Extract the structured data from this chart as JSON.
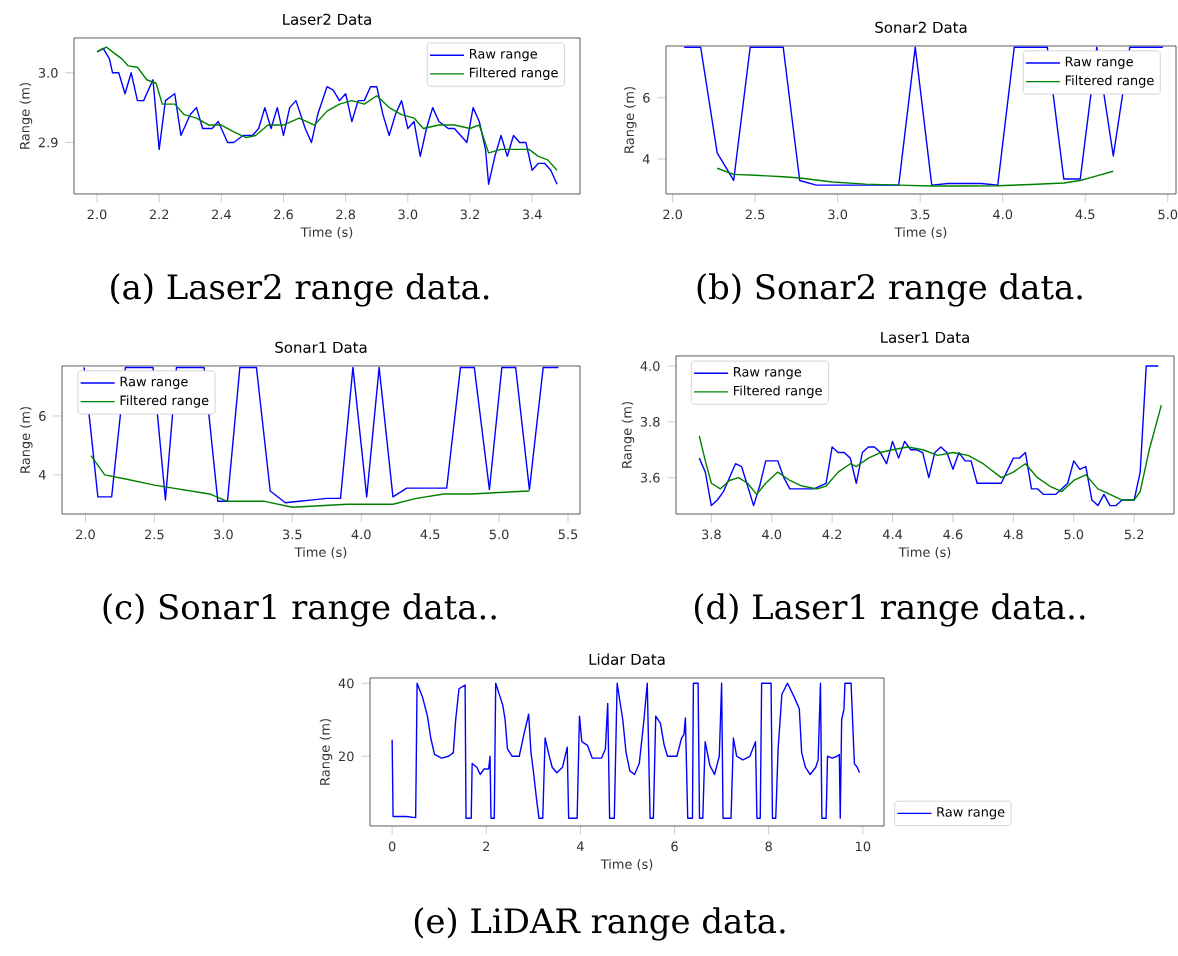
{
  "chart_data": [
    {
      "type": "line",
      "title": "Laser2 Data",
      "xlabel": "Time (s)",
      "ylabel": "Range (m)",
      "xlim": [
        1.926,
        3.554
      ],
      "ylim": [
        2.826,
        3.05
      ],
      "xticks": [
        {
          "value": 2.0,
          "label": "2.0"
        },
        2.2,
        2.4,
        2.6,
        2.8,
        {
          "value": 3.0,
          "label": "3.0"
        },
        3.2,
        3.4
      ],
      "yticks": [
        2.9,
        {
          "value": 3.0,
          "label": "3.0"
        }
      ],
      "legend": "top right",
      "annotations": [
        "(a) Laser2 range data."
      ],
      "series": [
        {
          "name": "Raw range",
          "color": "#0000ff",
          "x": [
            2.0,
            2.02,
            2.04,
            2.05,
            2.07,
            2.09,
            2.11,
            2.13,
            2.15,
            2.18,
            2.2,
            2.22,
            2.25,
            2.27,
            2.3,
            2.32,
            2.34,
            2.37,
            2.39,
            2.42,
            2.44,
            2.47,
            2.5,
            2.52,
            2.54,
            2.56,
            2.58,
            2.6,
            2.62,
            2.64,
            2.67,
            2.69,
            2.71,
            2.74,
            2.76,
            2.78,
            2.8,
            2.82,
            2.84,
            2.86,
            2.88,
            2.9,
            2.92,
            2.94,
            2.96,
            2.98,
            3.0,
            3.02,
            3.04,
            3.06,
            3.08,
            3.1,
            3.13,
            3.15,
            3.17,
            3.19,
            3.21,
            3.23,
            3.25,
            3.26,
            3.28,
            3.3,
            3.32,
            3.34,
            3.36,
            3.38,
            3.4,
            3.42,
            3.44,
            3.46,
            3.48
          ],
          "values": [
            3.03,
            3.035,
            3.02,
            3.0,
            3.0,
            2.97,
            3.0,
            2.96,
            2.96,
            2.99,
            2.89,
            2.96,
            2.97,
            2.91,
            2.94,
            2.95,
            2.92,
            2.92,
            2.93,
            2.9,
            2.9,
            2.91,
            2.91,
            2.92,
            2.95,
            2.92,
            2.95,
            2.91,
            2.95,
            2.96,
            2.92,
            2.9,
            2.94,
            2.98,
            2.975,
            2.96,
            2.97,
            2.93,
            2.96,
            2.96,
            2.98,
            2.98,
            2.94,
            2.91,
            2.94,
            2.96,
            2.92,
            2.93,
            2.88,
            2.92,
            2.95,
            2.93,
            2.92,
            2.92,
            2.91,
            2.9,
            2.95,
            2.93,
            2.89,
            2.84,
            2.88,
            2.91,
            2.88,
            2.91,
            2.9,
            2.9,
            2.86,
            2.87,
            2.87,
            2.86,
            2.84
          ]
        },
        {
          "name": "Filtered range",
          "color": "#008000",
          "x": [
            2.0,
            2.03,
            2.05,
            2.08,
            2.1,
            2.13,
            2.16,
            2.19,
            2.21,
            2.25,
            2.28,
            2.32,
            2.36,
            2.4,
            2.44,
            2.48,
            2.51,
            2.55,
            2.6,
            2.65,
            2.7,
            2.74,
            2.78,
            2.82,
            2.86,
            2.9,
            2.94,
            2.98,
            3.02,
            3.05,
            3.1,
            3.15,
            3.2,
            3.23,
            3.26,
            3.3,
            3.36,
            3.39,
            3.42,
            3.45,
            3.48
          ],
          "values": [
            3.03,
            3.037,
            3.03,
            3.02,
            3.01,
            3.008,
            2.99,
            2.985,
            2.955,
            2.955,
            2.94,
            2.935,
            2.925,
            2.925,
            2.915,
            2.907,
            2.91,
            2.925,
            2.925,
            2.935,
            2.925,
            2.945,
            2.955,
            2.96,
            2.955,
            2.967,
            2.95,
            2.94,
            2.935,
            2.92,
            2.925,
            2.925,
            2.92,
            2.925,
            2.885,
            2.89,
            2.89,
            2.89,
            2.88,
            2.875,
            2.86
          ]
        }
      ]
    },
    {
      "type": "line",
      "title": "Sonar2 Data",
      "xlabel": "Time (s)",
      "ylabel": "Range (m)",
      "xlim": [
        1.96,
        5.05
      ],
      "ylim": [
        2.86,
        7.69
      ],
      "xticks": [
        {
          "value": 2.0,
          "label": "2.0"
        },
        2.5,
        {
          "value": 3.0,
          "label": "3.0"
        },
        3.5,
        {
          "value": 4.0,
          "label": "4.0"
        },
        4.5,
        {
          "value": 5.0,
          "label": "5.0"
        }
      ],
      "yticks": [
        4,
        6
      ],
      "legend": "top right",
      "annotations": [
        "(b) Sonar2 range data."
      ],
      "series": [
        {
          "name": "Raw range",
          "color": "#0000ff",
          "x": [
            2.07,
            2.17,
            2.27,
            2.37,
            2.47,
            2.57,
            2.67,
            2.77,
            2.87,
            2.97,
            3.07,
            3.17,
            3.27,
            3.37,
            3.47,
            3.57,
            3.67,
            3.77,
            3.87,
            3.97,
            4.07,
            4.17,
            4.27,
            4.37,
            4.47,
            4.57,
            4.67,
            4.77,
            4.87,
            4.97
          ],
          "values": [
            7.65,
            7.65,
            4.2,
            3.3,
            7.65,
            7.65,
            7.65,
            3.3,
            3.15,
            3.15,
            3.15,
            3.15,
            3.15,
            3.15,
            7.65,
            3.15,
            3.2,
            3.2,
            3.2,
            3.15,
            7.65,
            7.65,
            7.65,
            3.35,
            3.35,
            7.65,
            4.1,
            7.65,
            7.65,
            7.65
          ]
        },
        {
          "name": "Filtered range",
          "color": "#008000",
          "x": [
            2.27,
            2.37,
            2.5,
            2.67,
            2.77,
            2.97,
            3.17,
            3.37,
            3.57,
            3.77,
            3.97,
            4.17,
            4.37,
            4.47,
            4.57,
            4.67
          ],
          "values": [
            3.7,
            3.5,
            3.47,
            3.42,
            3.38,
            3.25,
            3.18,
            3.15,
            3.12,
            3.12,
            3.13,
            3.17,
            3.22,
            3.3,
            3.45,
            3.6
          ]
        }
      ]
    },
    {
      "type": "line",
      "title": "Sonar1 Data",
      "xlabel": "Time (s)",
      "ylabel": "Range (m)",
      "xlim": [
        1.83,
        5.587
      ],
      "ylim": [
        2.67,
        7.7
      ],
      "xticks": [
        {
          "value": 2.0,
          "label": "2.0"
        },
        2.5,
        {
          "value": 3.0,
          "label": "3.0"
        },
        3.5,
        {
          "value": 4.0,
          "label": "4.0"
        },
        4.5,
        {
          "value": 5.0,
          "label": "5.0"
        },
        5.5
      ],
      "yticks": [
        4,
        6
      ],
      "legend": "top left",
      "annotations": [
        "(c) Sonar1 range data.."
      ],
      "series": [
        {
          "name": "Raw range",
          "color": "#0000ff",
          "x": [
            1.99,
            2.09,
            2.19,
            2.29,
            2.39,
            2.49,
            2.58,
            2.66,
            2.76,
            2.86,
            2.96,
            3.03,
            3.12,
            3.24,
            3.34,
            3.45,
            3.55,
            3.65,
            3.75,
            3.85,
            3.94,
            4.04,
            4.13,
            4.23,
            4.33,
            4.43,
            4.53,
            4.62,
            4.72,
            4.82,
            4.93,
            5.02,
            5.12,
            5.22,
            5.32,
            5.43
          ],
          "values": [
            7.65,
            3.25,
            3.25,
            7.65,
            7.65,
            7.65,
            3.15,
            7.65,
            7.65,
            7.65,
            3.1,
            3.1,
            7.65,
            7.65,
            3.45,
            3.05,
            3.1,
            3.15,
            3.2,
            3.2,
            7.65,
            3.25,
            7.65,
            3.25,
            3.55,
            3.55,
            3.55,
            3.55,
            7.65,
            7.65,
            3.5,
            7.65,
            7.65,
            3.5,
            7.65,
            7.65
          ]
        },
        {
          "name": "Filtered range",
          "color": "#008000",
          "x": [
            2.04,
            2.14,
            2.3,
            2.5,
            2.7,
            2.9,
            3.03,
            3.3,
            3.5,
            3.7,
            3.9,
            4.1,
            4.23,
            4.4,
            4.6,
            4.8,
            5.0,
            5.22
          ],
          "values": [
            4.65,
            4.0,
            3.85,
            3.65,
            3.5,
            3.35,
            3.1,
            3.1,
            2.9,
            2.95,
            3.0,
            3.0,
            3.0,
            3.2,
            3.35,
            3.35,
            3.4,
            3.45
          ]
        }
      ]
    },
    {
      "type": "line",
      "title": "Laser1 Data",
      "xlabel": "Time (s)",
      "ylabel": "Range (m)",
      "xlim": [
        3.683,
        5.332
      ],
      "ylim": [
        3.47,
        4.036
      ],
      "xticks": [
        3.8,
        {
          "value": 4.0,
          "label": "4.0"
        },
        4.2,
        4.4,
        4.6,
        4.8,
        {
          "value": 5.0,
          "label": "5.0"
        },
        5.2
      ],
      "yticks": [
        3.6,
        3.8,
        {
          "value": 4.0,
          "label": "4.0"
        }
      ],
      "legend": "top left",
      "annotations": [
        "(d) Laser1 range data.."
      ],
      "series": [
        {
          "name": "Raw range",
          "color": "#0000ff",
          "x": [
            3.76,
            3.78,
            3.8,
            3.82,
            3.84,
            3.86,
            3.88,
            3.9,
            3.92,
            3.94,
            3.96,
            3.98,
            4.0,
            4.02,
            4.04,
            4.06,
            4.1,
            4.14,
            4.18,
            4.2,
            4.22,
            4.24,
            4.26,
            4.28,
            4.3,
            4.32,
            4.34,
            4.36,
            4.38,
            4.4,
            4.42,
            4.44,
            4.46,
            4.48,
            4.5,
            4.52,
            4.54,
            4.56,
            4.58,
            4.6,
            4.62,
            4.64,
            4.66,
            4.68,
            4.72,
            4.76,
            4.8,
            4.82,
            4.84,
            4.86,
            4.88,
            4.9,
            4.94,
            4.98,
            5.0,
            5.02,
            5.04,
            5.06,
            5.08,
            5.1,
            5.12,
            5.14,
            5.16,
            5.18,
            5.2,
            5.22,
            5.24,
            5.26,
            5.28
          ],
          "values": [
            3.67,
            3.62,
            3.5,
            3.52,
            3.55,
            3.6,
            3.65,
            3.64,
            3.57,
            3.5,
            3.57,
            3.66,
            3.66,
            3.66,
            3.6,
            3.56,
            3.56,
            3.56,
            3.58,
            3.71,
            3.69,
            3.69,
            3.67,
            3.58,
            3.69,
            3.71,
            3.71,
            3.69,
            3.65,
            3.73,
            3.67,
            3.73,
            3.7,
            3.7,
            3.69,
            3.6,
            3.69,
            3.71,
            3.69,
            3.63,
            3.69,
            3.66,
            3.66,
            3.58,
            3.58,
            3.58,
            3.67,
            3.67,
            3.69,
            3.56,
            3.56,
            3.54,
            3.54,
            3.58,
            3.66,
            3.63,
            3.64,
            3.52,
            3.5,
            3.54,
            3.5,
            3.5,
            3.52,
            3.52,
            3.52,
            3.62,
            4.0,
            4.0,
            4.0
          ]
        },
        {
          "name": "Filtered range",
          "color": "#008000",
          "x": [
            3.76,
            3.78,
            3.8,
            3.83,
            3.86,
            3.89,
            3.92,
            3.95,
            3.98,
            4.02,
            4.06,
            4.1,
            4.15,
            4.18,
            4.22,
            4.26,
            4.28,
            4.32,
            4.36,
            4.4,
            4.45,
            4.5,
            4.55,
            4.6,
            4.65,
            4.7,
            4.76,
            4.8,
            4.84,
            4.88,
            4.92,
            4.96,
            5.0,
            5.04,
            5.08,
            5.12,
            5.16,
            5.2,
            5.22,
            5.25,
            5.29
          ],
          "values": [
            3.75,
            3.66,
            3.58,
            3.56,
            3.59,
            3.6,
            3.58,
            3.54,
            3.58,
            3.62,
            3.59,
            3.57,
            3.56,
            3.57,
            3.62,
            3.65,
            3.64,
            3.67,
            3.69,
            3.7,
            3.71,
            3.7,
            3.68,
            3.69,
            3.68,
            3.65,
            3.6,
            3.62,
            3.65,
            3.6,
            3.57,
            3.55,
            3.59,
            3.61,
            3.56,
            3.54,
            3.52,
            3.52,
            3.55,
            3.7,
            3.86
          ]
        }
      ]
    },
    {
      "type": "line",
      "title": "Lidar Data",
      "xlabel": "Time (s)",
      "ylabel": "Range (m)",
      "xlim": [
        -0.47,
        10.45
      ],
      "ylim": [
        0.9,
        41.45
      ],
      "xticks": [
        0,
        2,
        4,
        6,
        8,
        10
      ],
      "yticks": [
        20,
        40
      ],
      "legend": "bottom right",
      "annotations": [
        "(e) LiDAR range data."
      ],
      "series": [
        {
          "name": "Raw range",
          "color": "#0000ff",
          "x": [
            0.0,
            0.02,
            0.3,
            0.5,
            0.53,
            0.65,
            0.75,
            0.82,
            0.9,
            1.05,
            1.2,
            1.3,
            1.35,
            1.42,
            1.55,
            1.57,
            1.68,
            1.7,
            1.8,
            1.87,
            1.95,
            2.05,
            2.08,
            2.1,
            2.17,
            2.2,
            2.35,
            2.4,
            2.45,
            2.55,
            2.7,
            2.8,
            2.9,
            2.95,
            3.0,
            3.07,
            3.12,
            3.2,
            3.25,
            3.32,
            3.4,
            3.5,
            3.62,
            3.72,
            3.75,
            3.93,
            3.98,
            4.03,
            4.15,
            4.25,
            4.45,
            4.53,
            4.58,
            4.62,
            4.72,
            4.78,
            4.9,
            4.97,
            5.05,
            5.15,
            5.25,
            5.35,
            5.42,
            5.48,
            5.55,
            5.6,
            5.7,
            5.78,
            5.85,
            6.05,
            6.15,
            6.2,
            6.23,
            6.28,
            6.38,
            6.4,
            6.5,
            6.53,
            6.6,
            6.65,
            6.75,
            6.85,
            6.95,
            7.0,
            7.03,
            7.2,
            7.25,
            7.32,
            7.45,
            7.6,
            7.72,
            7.75,
            7.82,
            7.85,
            8.05,
            8.08,
            8.15,
            8.2,
            8.28,
            8.4,
            8.55,
            8.65,
            8.7,
            8.78,
            8.88,
            9.0,
            9.05,
            9.1,
            9.13,
            9.22,
            9.25,
            9.35,
            9.45,
            9.5,
            9.52,
            9.55,
            9.6,
            9.62,
            9.75,
            9.82,
            9.88,
            9.93
          ],
          "values": [
            24.5,
            3.5,
            3.5,
            3.2,
            40,
            36,
            31,
            25,
            20.5,
            19.5,
            20,
            21,
            30,
            38.5,
            39.5,
            3,
            3,
            18,
            17,
            15,
            16.5,
            16.5,
            20,
            3,
            3,
            40,
            34,
            30,
            22,
            20,
            20,
            26,
            31.5,
            21,
            16,
            8,
            3,
            3,
            25,
            21,
            17,
            15.5,
            17,
            22.5,
            3,
            3,
            31,
            24,
            23,
            19.5,
            19.5,
            22,
            34.5,
            3,
            3,
            40,
            30,
            21,
            16,
            15,
            18,
            30,
            40,
            3,
            3,
            31,
            29,
            23,
            20,
            20,
            25,
            26,
            30.5,
            3,
            3,
            40,
            40,
            3,
            3,
            24,
            17.5,
            15,
            20,
            40,
            3,
            3,
            25,
            20,
            19,
            20,
            24,
            3,
            3,
            40,
            40,
            3,
            3,
            22,
            37,
            40,
            36,
            33,
            21,
            17,
            15,
            17,
            19,
            40,
            3,
            3,
            20,
            19.5,
            20,
            20.5,
            3,
            30,
            33,
            40,
            40,
            18,
            17,
            15.5
          ]
        }
      ]
    }
  ]
}
